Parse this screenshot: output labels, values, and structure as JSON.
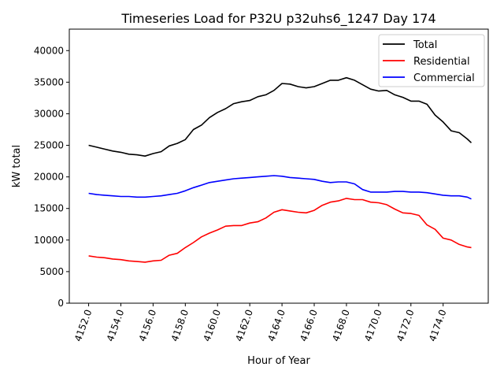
{
  "chart_data": {
    "type": "line",
    "title": "Timeseries Load for P32U p32uhs6_1247  Day 174",
    "xlabel": "Hour of Year",
    "ylabel": "kW total",
    "xlim": [
      4150.8,
      4176.8
    ],
    "ylim": [
      0,
      43400
    ],
    "xticks": [
      "4152.0",
      "4154.0",
      "4156.0",
      "4158.0",
      "4160.0",
      "4162.0",
      "4164.0",
      "4166.0",
      "4168.0",
      "4170.0",
      "4172.0",
      "4174.0"
    ],
    "xtick_values": [
      4152,
      4154,
      4156,
      4158,
      4160,
      4162,
      4164,
      4166,
      4168,
      4170,
      4172,
      4174
    ],
    "yticks": [
      "0",
      "5000",
      "10000",
      "15000",
      "20000",
      "25000",
      "30000",
      "35000",
      "40000"
    ],
    "ytick_values": [
      0,
      5000,
      10000,
      15000,
      20000,
      25000,
      30000,
      35000,
      40000
    ],
    "grid": false,
    "legend_position": "top-right",
    "x": [
      4152,
      4152.5,
      4153,
      4153.5,
      4154,
      4154.5,
      4155,
      4155.5,
      4156,
      4156.5,
      4157,
      4157.5,
      4158,
      4158.5,
      4159,
      4159.5,
      4160,
      4160.5,
      4161,
      4161.5,
      4162,
      4162.5,
      4163,
      4163.5,
      4164,
      4164.5,
      4165,
      4165.5,
      4166,
      4166.5,
      4167,
      4167.5,
      4168,
      4168.5,
      4169,
      4169.5,
      4170,
      4170.5,
      4171,
      4171.5,
      4172,
      4172.5,
      4173,
      4173.5,
      4174,
      4174.5,
      4175,
      4175.5,
      4175.75
    ],
    "series": [
      {
        "name": "Total",
        "color": "#000000",
        "values": [
          25000,
          24700,
          24400,
          24100,
          23900,
          23600,
          23500,
          23300,
          23700,
          24000,
          24900,
          25300,
          25900,
          27500,
          28200,
          29400,
          30200,
          30800,
          31600,
          31900,
          32100,
          32700,
          33000,
          33700,
          34800,
          34700,
          34300,
          34100,
          34300,
          34800,
          35300,
          35300,
          35700,
          35300,
          34600,
          33900,
          33600,
          33700,
          33000,
          32600,
          32000,
          32000,
          31500,
          29800,
          28700,
          27300,
          27000,
          26000,
          25400
        ]
      },
      {
        "name": "Residential",
        "color": "#ff0000",
        "values": [
          7500,
          7300,
          7200,
          7000,
          6900,
          6700,
          6600,
          6500,
          6700,
          6800,
          7600,
          7900,
          8800,
          9600,
          10500,
          11100,
          11600,
          12200,
          12300,
          12300,
          12700,
          12900,
          13500,
          14400,
          14800,
          14600,
          14400,
          14300,
          14700,
          15500,
          16000,
          16200,
          16600,
          16400,
          16400,
          16000,
          15900,
          15600,
          14900,
          14300,
          14200,
          13900,
          12400,
          11700,
          10300,
          10000,
          9300,
          8900,
          8800
        ]
      },
      {
        "name": "Commercial",
        "color": "#0000ff",
        "values": [
          17400,
          17200,
          17100,
          17000,
          16900,
          16900,
          16800,
          16800,
          16900,
          17000,
          17200,
          17400,
          17800,
          18300,
          18700,
          19100,
          19300,
          19500,
          19700,
          19800,
          19900,
          20000,
          20100,
          20200,
          20100,
          19900,
          19800,
          19700,
          19600,
          19300,
          19100,
          19200,
          19200,
          18900,
          18000,
          17600,
          17600,
          17600,
          17700,
          17700,
          17600,
          17600,
          17500,
          17300,
          17100,
          17000,
          17000,
          16800,
          16500
        ]
      }
    ]
  }
}
